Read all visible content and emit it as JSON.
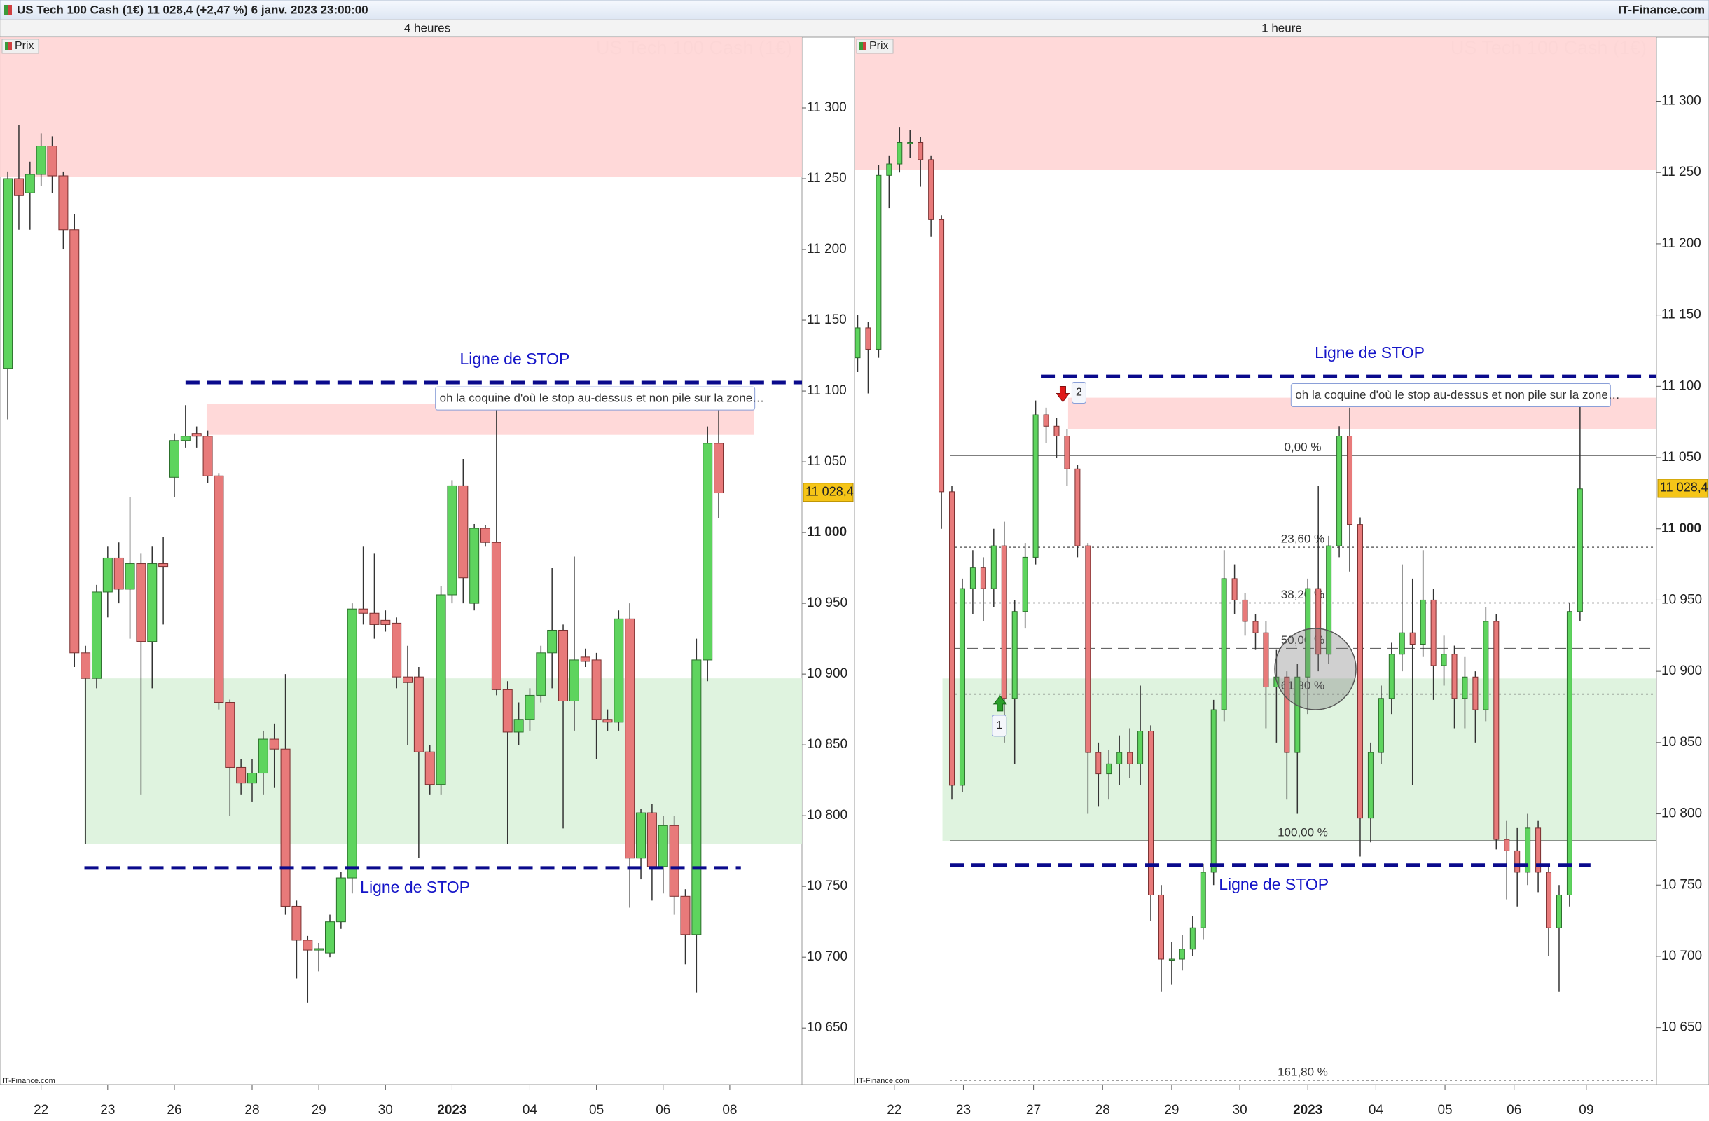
{
  "header": {
    "title": "US Tech 100 Cash (1€) 11 028,4 (+2,47 %) 6 janv. 2023 23:00:00",
    "site": "IT-Finance.com"
  },
  "chart_data": [
    {
      "type": "candlestick",
      "title": "4 heures",
      "watermark": "US Tech 100 Cash (1€)",
      "legend": "Prix",
      "source": "IT-Finance.com",
      "xlim": [
        -0.7,
        71.5
      ],
      "ylim": [
        10610,
        11350
      ],
      "yticks": [
        {
          "value": 10650,
          "label": "10 650"
        },
        {
          "value": 10700,
          "label": "10 700"
        },
        {
          "value": 10750,
          "label": "10 750"
        },
        {
          "value": 10800,
          "label": "10 800"
        },
        {
          "value": 10850,
          "label": "10 850"
        },
        {
          "value": 10900,
          "label": "10 900"
        },
        {
          "value": 10950,
          "label": "10 950"
        },
        {
          "value": 11000,
          "label": "11 000",
          "bold": true
        },
        {
          "value": 11050,
          "label": "11 050"
        },
        {
          "value": 11100,
          "label": "11 100"
        },
        {
          "value": 11150,
          "label": "11 150"
        },
        {
          "value": 11200,
          "label": "11 200"
        },
        {
          "value": 11250,
          "label": "11 250"
        },
        {
          "value": 11300,
          "label": "11 300"
        }
      ],
      "xticks": [
        {
          "value": 3,
          "label": "22"
        },
        {
          "value": 9,
          "label": "23"
        },
        {
          "value": 15,
          "label": "26"
        },
        {
          "value": 22,
          "label": "28"
        },
        {
          "value": 28,
          "label": "29"
        },
        {
          "value": 34,
          "label": "30"
        },
        {
          "value": 40,
          "label": "2023",
          "bold": true
        },
        {
          "value": 47,
          "label": "04"
        },
        {
          "value": 53,
          "label": "05"
        },
        {
          "value": 59,
          "label": "06"
        },
        {
          "value": 65,
          "label": "08"
        }
      ],
      "open": [
        11116,
        11250,
        11240,
        11253,
        11273,
        11252,
        11214,
        10915,
        10897,
        10958,
        10982,
        10960,
        10978,
        10923,
        10978,
        11039,
        11065,
        11070,
        11068,
        11040,
        10880,
        10834,
        10823,
        10830,
        10854,
        10847,
        10736,
        10712,
        10705,
        10703,
        10725,
        10756,
        10946,
        10943,
        10938,
        10936,
        10898,
        10898,
        10845,
        10822,
        10956,
        11033,
        10950,
        11003,
        10993,
        10889,
        10859,
        10868,
        10885,
        10915,
        10931,
        10881,
        10912,
        10910,
        10868,
        10866,
        10939,
        10770,
        10802,
        10764,
        10793,
        10743,
        10716,
        10910,
        11063
      ],
      "high": [
        11255,
        11288,
        11262,
        11282,
        11280,
        11255,
        11225,
        10920,
        10963,
        10990,
        10993,
        11025,
        10985,
        10990,
        10997,
        11070,
        11090,
        11075,
        11072,
        11042,
        10882,
        10840,
        10840,
        10860,
        10865,
        10900,
        10740,
        10715,
        10710,
        10730,
        10760,
        10950,
        10990,
        10985,
        10945,
        10940,
        10920,
        10905,
        10850,
        10962,
        11037,
        11052,
        11006,
        11005,
        11091,
        10895,
        10880,
        10890,
        10920,
        10975,
        10935,
        10983,
        10918,
        10915,
        10875,
        10945,
        10950,
        10805,
        10808,
        10800,
        10800,
        10748,
        10925,
        11075,
        11090
      ],
      "low": [
        11080,
        11214,
        11214,
        11245,
        11240,
        11200,
        10905,
        10780,
        10890,
        10940,
        10950,
        10925,
        10815,
        10890,
        10935,
        11025,
        11060,
        11060,
        11035,
        10875,
        10800,
        10815,
        10810,
        10815,
        10820,
        10730,
        10685,
        10668,
        10690,
        10700,
        10720,
        10745,
        10935,
        10925,
        10930,
        10890,
        10850,
        10770,
        10815,
        10815,
        10950,
        10950,
        10945,
        10990,
        10885,
        10780,
        10850,
        10860,
        10880,
        10890,
        10791,
        10860,
        10905,
        10840,
        10860,
        10860,
        10735,
        10755,
        10740,
        10745,
        10730,
        10695,
        10675,
        10895,
        11010
      ],
      "close": [
        11250,
        11238,
        11253,
        11273,
        11252,
        11214,
        10915,
        10897,
        10958,
        10982,
        10960,
        10978,
        10923,
        10978,
        10976,
        11065,
        11068,
        11068,
        11040,
        10880,
        10834,
        10823,
        10830,
        10854,
        10847,
        10736,
        10712,
        10705,
        10706,
        10725,
        10756,
        10946,
        10943,
        10935,
        10935,
        10898,
        10894,
        10845,
        10822,
        10956,
        11033,
        10968,
        11003,
        10993,
        10889,
        10859,
        10868,
        10885,
        10915,
        10931,
        10881,
        10910,
        10909,
        10868,
        10866,
        10939,
        10770,
        10802,
        10764,
        10793,
        10743,
        10716,
        10910,
        11063,
        11028
      ],
      "up_color": "#5ed45e",
      "down_color": "#e87a7a",
      "zones": [
        {
          "from": 11251,
          "to": 11350,
          "start": -0.7,
          "end": 71.5,
          "color": "#ffd5d5"
        },
        {
          "from": 11069,
          "to": 11091,
          "start": 17.9,
          "end": 67.2,
          "color": "#ffd5d5"
        },
        {
          "from": 10780,
          "to": 10897,
          "start": 6.9,
          "end": 71.5,
          "color": "#dcf2dc"
        }
      ],
      "stop_lines": [
        {
          "value": 11106,
          "start": 16,
          "end": 71.5,
          "label": "Ligne de STOP",
          "place": "above"
        },
        {
          "value": 10763,
          "start": 6.9,
          "end": 66,
          "label": "Ligne de STOP",
          "place": "below"
        }
      ],
      "note": {
        "text": "oh la coquine d'où le stop au-dessus et non pile sur la zone…",
        "x": 38.5,
        "y": 11095
      },
      "last_price": {
        "value": 11028.4,
        "label": "11 028,4"
      }
    },
    {
      "type": "candlestick",
      "title": "1 heure",
      "watermark": "US Tech 100 Cash (1€)",
      "legend": "Prix",
      "source": "IT-Finance.com",
      "xlim": [
        -0.3,
        76.3
      ],
      "ylim": [
        10610,
        11345
      ],
      "yticks": [
        {
          "value": 10650,
          "label": "10 650"
        },
        {
          "value": 10700,
          "label": "10 700"
        },
        {
          "value": 10750,
          "label": "10 750"
        },
        {
          "value": 10800,
          "label": "10 800"
        },
        {
          "value": 10850,
          "label": "10 850"
        },
        {
          "value": 10900,
          "label": "10 900"
        },
        {
          "value": 10950,
          "label": "10 950"
        },
        {
          "value": 11000,
          "label": "11 000",
          "bold": true
        },
        {
          "value": 11050,
          "label": "11 050"
        },
        {
          "value": 11100,
          "label": "11 100"
        },
        {
          "value": 11150,
          "label": "11 150"
        },
        {
          "value": 11200,
          "label": "11 200"
        },
        {
          "value": 11250,
          "label": "11 250"
        },
        {
          "value": 11300,
          "label": "11 300"
        }
      ],
      "xticks": [
        {
          "value": 3.5,
          "label": "22"
        },
        {
          "value": 10.1,
          "label": "23"
        },
        {
          "value": 16.8,
          "label": "27"
        },
        {
          "value": 23.4,
          "label": "28"
        },
        {
          "value": 30,
          "label": "29"
        },
        {
          "value": 36.5,
          "label": "30"
        },
        {
          "value": 43,
          "label": "2023",
          "bold": true
        },
        {
          "value": 49.5,
          "label": "04"
        },
        {
          "value": 56.1,
          "label": "05"
        },
        {
          "value": 62.7,
          "label": "06"
        },
        {
          "value": 69.6,
          "label": "09"
        }
      ],
      "open": [
        11120,
        11141,
        11126,
        11248,
        11256,
        11271,
        11271,
        11259,
        11217,
        11026,
        10820,
        10958,
        10973,
        10958,
        10988,
        10881,
        10942,
        10980,
        11080,
        11072,
        11065,
        11042,
        10988,
        10843,
        10828,
        10835,
        10843,
        10835,
        10858,
        10743,
        10698,
        10698,
        10705,
        10720,
        10759,
        10873,
        10965,
        10950,
        10935,
        10927,
        10889,
        10896,
        10843,
        10896,
        10958,
        10912,
        10988,
        11065,
        11003,
        10797,
        10843,
        10881,
        10912,
        10927,
        10919,
        10950,
        10904,
        10912,
        10881,
        10896,
        10873,
        10935,
        10782,
        10774,
        10759,
        10790,
        10759,
        10720,
        10743,
        10942
      ],
      "high": [
        11150,
        11145,
        11255,
        11262,
        11282,
        11280,
        11275,
        11262,
        11220,
        11030,
        10965,
        10985,
        10980,
        11000,
        11005,
        10950,
        10990,
        11090,
        11085,
        11078,
        11070,
        11045,
        10990,
        10850,
        10845,
        10855,
        10860,
        10890,
        10862,
        10750,
        10710,
        10715,
        10728,
        10765,
        10880,
        10985,
        10975,
        10955,
        10940,
        10935,
        10915,
        10900,
        10905,
        10965,
        11030,
        10995,
        11072,
        11085,
        11008,
        10850,
        10890,
        10920,
        10975,
        10965,
        10985,
        10958,
        10925,
        10918,
        10910,
        10900,
        10945,
        10940,
        10795,
        10790,
        10800,
        10795,
        10765,
        10750,
        10948,
        11090
      ],
      "low": [
        11110,
        11095,
        11120,
        11225,
        11250,
        11260,
        11240,
        11205,
        11000,
        10810,
        10815,
        10940,
        10935,
        10945,
        10850,
        10835,
        10930,
        10975,
        11060,
        11050,
        11030,
        10980,
        10800,
        10805,
        10810,
        10820,
        10825,
        10820,
        10725,
        10675,
        10680,
        10690,
        10700,
        10712,
        10750,
        10865,
        10940,
        10925,
        10915,
        10860,
        10850,
        10810,
        10800,
        10870,
        10900,
        10905,
        10980,
        10970,
        10770,
        10780,
        10835,
        10870,
        10900,
        10820,
        10910,
        10880,
        10890,
        10860,
        10860,
        10850,
        10865,
        10775,
        10740,
        10735,
        10750,
        10745,
        10700,
        10675,
        10735,
        10935
      ],
      "close": [
        11141,
        11126,
        11248,
        11256,
        11271,
        11271,
        11259,
        11217,
        11026,
        10820,
        10958,
        10973,
        10958,
        10988,
        10881,
        10942,
        10980,
        11080,
        11072,
        11065,
        11042,
        10988,
        10843,
        10828,
        10835,
        10843,
        10835,
        10858,
        10743,
        10698,
        10698,
        10705,
        10720,
        10759,
        10873,
        10965,
        10950,
        10935,
        10927,
        10889,
        10896,
        10843,
        10896,
        10958,
        10912,
        10988,
        11065,
        11003,
        10797,
        10843,
        10881,
        10912,
        10927,
        10919,
        10950,
        10904,
        10912,
        10881,
        10896,
        10873,
        10935,
        10782,
        10774,
        10759,
        10790,
        10759,
        10720,
        10743,
        10942,
        11028
      ],
      "up_color": "#5ed45e",
      "down_color": "#e87a7a",
      "zones": [
        {
          "from": 11252,
          "to": 11345,
          "start": -0.3,
          "end": 76.3,
          "color": "#ffd5d5"
        },
        {
          "from": 11070,
          "to": 11092,
          "start": 20.1,
          "end": 76.3,
          "color": "#ffd5d5"
        },
        {
          "from": 10781,
          "to": 10895,
          "start": 8.1,
          "end": 76.3,
          "color": "#dcf2dc"
        }
      ],
      "fibonacci": {
        "start": 8.8,
        "levels": [
          {
            "value": 11051.5,
            "label": "0,00 %",
            "style": "solid"
          },
          {
            "value": 10987,
            "label": "23,60 %",
            "style": "dotted"
          },
          {
            "value": 10948,
            "label": "38,20 %",
            "style": "dotted"
          },
          {
            "value": 10916,
            "label": "50,00 %",
            "style": "dashed"
          },
          {
            "value": 10884,
            "label": "61,80 %",
            "style": "dotted"
          },
          {
            "value": 10781,
            "label": "100,00 %",
            "style": "solid"
          },
          {
            "value": 10613,
            "label": "161,80 %",
            "style": "dotted"
          }
        ]
      },
      "stop_lines": [
        {
          "value": 11107,
          "start": 17.5,
          "end": 76.3,
          "label": "Ligne de STOP",
          "place": "above"
        },
        {
          "value": 10764,
          "start": 8.8,
          "end": 70,
          "label": "Ligne de STOP",
          "place": "below"
        }
      ],
      "note": {
        "text": "oh la coquine d'où le stop au-dessus et non pile sur la zone…",
        "x": 41.4,
        "y": 11094
      },
      "signals": [
        {
          "x": 13.6,
          "y": 10877,
          "label": "1",
          "direction": "up"
        },
        {
          "x": 19.6,
          "y": 11095,
          "label": "2",
          "direction": "down"
        }
      ],
      "last_price": {
        "value": 11028.4,
        "label": "11 028,4"
      }
    }
  ]
}
